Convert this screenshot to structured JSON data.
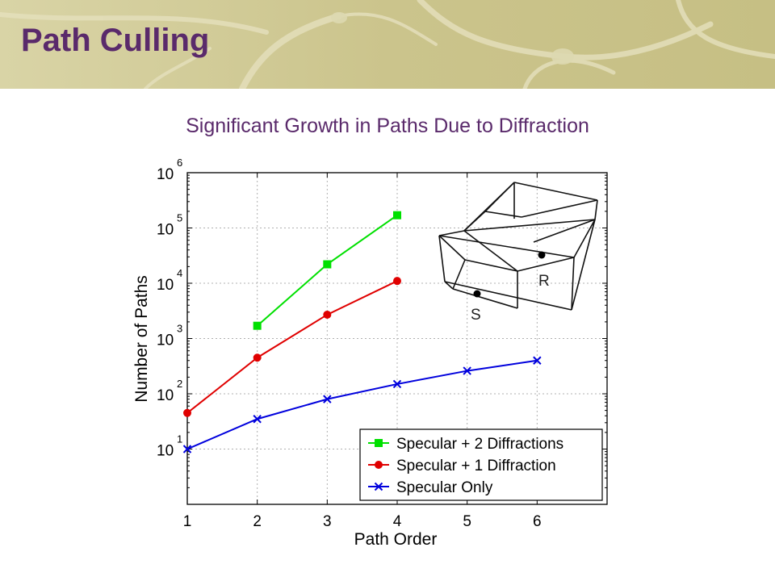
{
  "slide": {
    "title": "Path Culling"
  },
  "colors": {
    "title": "#5a2a6b",
    "specular_2_diff": "#00e000",
    "specular_1_diff": "#e00000",
    "specular_only": "#0000dd"
  },
  "chart_data": {
    "type": "line",
    "title": "Significant Growth in Paths Due to Diffraction",
    "xlabel": "Path Order",
    "ylabel": "Number of Paths",
    "yscale": "log",
    "xlim": [
      1,
      7
    ],
    "ylim": [
      1,
      1000000
    ],
    "xticks": [
      "1",
      "2",
      "3",
      "4",
      "5",
      "6"
    ],
    "yticks": [
      {
        "base": "10",
        "exp": "1",
        "value": 10
      },
      {
        "base": "10",
        "exp": "2",
        "value": 100
      },
      {
        "base": "10",
        "exp": "3",
        "value": 1000
      },
      {
        "base": "10",
        "exp": "4",
        "value": 10000
      },
      {
        "base": "10",
        "exp": "5",
        "value": 100000
      },
      {
        "base": "10",
        "exp": "6",
        "value": 1000000
      }
    ],
    "grid": true,
    "legend_position": "bottom-right",
    "series": [
      {
        "name": "Specular + 2 Diffractions",
        "marker": "square",
        "color": "#00e000",
        "x": [
          2,
          3,
          4
        ],
        "y": [
          1700,
          22000,
          170000
        ]
      },
      {
        "name": "Specular + 1 Diffraction",
        "marker": "circle",
        "color": "#e00000",
        "x": [
          1,
          2,
          3,
          4
        ],
        "y": [
          45,
          450,
          2700,
          11000
        ]
      },
      {
        "name": "Specular Only",
        "marker": "x",
        "color": "#0000dd",
        "x": [
          1,
          2,
          3,
          4,
          5,
          6
        ],
        "y": [
          10,
          35,
          80,
          150,
          260,
          400
        ]
      }
    ],
    "inset": {
      "labels": {
        "source": "S",
        "receiver": "R"
      }
    }
  }
}
